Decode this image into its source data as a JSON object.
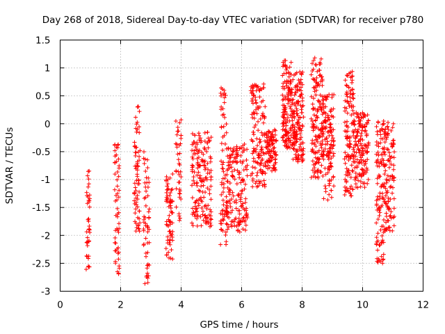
{
  "chart_data": {
    "type": "scatter",
    "title": "Day 268 of 2018, Sidereal Day-to-day VTEC variation (SDTVAR) for receiver p780",
    "xlabel": "GPS time / hours",
    "ylabel": "SDTVAR / TECUs",
    "xlim": [
      0,
      12
    ],
    "ylim": [
      -3,
      1.5
    ],
    "xticks": [
      "0",
      "2",
      "4",
      "6",
      "8",
      "10",
      "12"
    ],
    "yticks": [
      "1.5",
      "1",
      "0.5",
      "0",
      "-0.5",
      "-1",
      "-1.5",
      "-2",
      "-2.5",
      "-3"
    ],
    "grid": true,
    "marker": "plus",
    "color": "#ff0000",
    "clusters": [
      {
        "x": [
          0.86,
          0.98
        ],
        "ymin": -2.7,
        "ymax": -0.8,
        "n": 40
      },
      {
        "x": [
          1.8,
          1.96
        ],
        "ymin": -2.7,
        "ymax": -0.35,
        "n": 55
      },
      {
        "x": [
          2.45,
          2.65
        ],
        "ymin": -2.0,
        "ymax": 0.35,
        "n": 70
      },
      {
        "x": [
          2.75,
          2.95
        ],
        "ymin": -2.9,
        "ymax": -0.5,
        "n": 55
      },
      {
        "x": [
          3.5,
          3.72
        ],
        "ymin": -2.45,
        "ymax": -0.85,
        "n": 70
      },
      {
        "x": [
          3.8,
          4.0
        ],
        "ymin": -1.75,
        "ymax": 0.18,
        "n": 40
      },
      {
        "x": [
          4.35,
          5.0
        ],
        "ymin": -1.85,
        "ymax": -0.15,
        "n": 170
      },
      {
        "x": [
          5.3,
          5.5
        ],
        "ymin": -2.2,
        "ymax": 0.75,
        "n": 70
      },
      {
        "x": [
          5.5,
          6.2
        ],
        "ymin": -1.95,
        "ymax": -0.35,
        "n": 170
      },
      {
        "x": [
          6.3,
          6.8
        ],
        "ymin": -1.15,
        "ymax": 0.72,
        "n": 140
      },
      {
        "x": [
          6.8,
          7.15
        ],
        "ymin": -0.85,
        "ymax": -0.1,
        "n": 90
      },
      {
        "x": [
          7.35,
          7.65
        ],
        "ymin": -0.45,
        "ymax": 1.15,
        "n": 130
      },
      {
        "x": [
          7.65,
          8.05
        ],
        "ymin": -0.7,
        "ymax": 0.95,
        "n": 160
      },
      {
        "x": [
          8.3,
          8.7
        ],
        "ymin": -1.0,
        "ymax": 1.18,
        "n": 160
      },
      {
        "x": [
          8.7,
          9.05
        ],
        "ymin": -1.4,
        "ymax": 0.55,
        "n": 120
      },
      {
        "x": [
          9.4,
          9.7
        ],
        "ymin": -1.3,
        "ymax": 0.95,
        "n": 120
      },
      {
        "x": [
          9.7,
          10.2
        ],
        "ymin": -1.15,
        "ymax": 0.2,
        "n": 150
      },
      {
        "x": [
          10.45,
          10.7
        ],
        "ymin": -2.5,
        "ymax": 0.05,
        "n": 100
      },
      {
        "x": [
          10.7,
          11.05
        ],
        "ymin": -1.95,
        "ymax": 0.05,
        "n": 120
      }
    ]
  }
}
